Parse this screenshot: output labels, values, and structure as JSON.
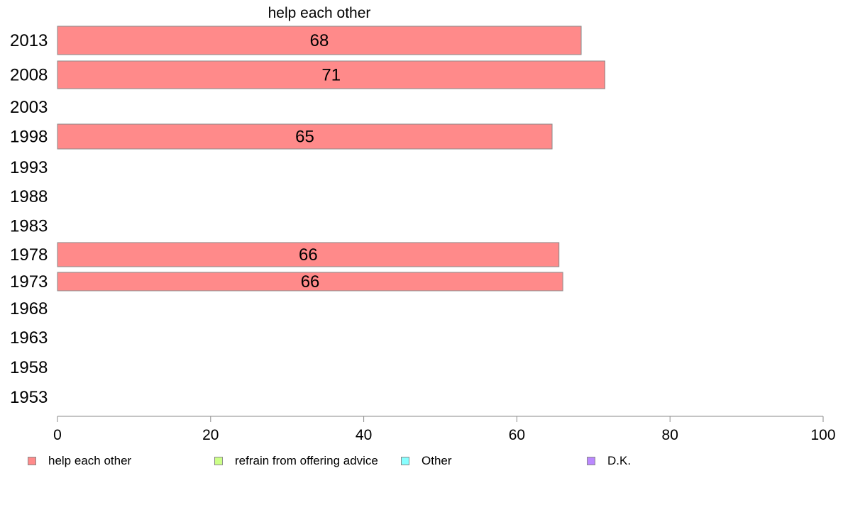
{
  "chart_data": {
    "type": "bar",
    "orientation": "horizontal",
    "title": "help each other",
    "categories": [
      "2013",
      "2008",
      "2003",
      "1998",
      "1993",
      "1988",
      "1983",
      "1978",
      "1973",
      "1968",
      "1963",
      "1958",
      "1953"
    ],
    "series": [
      {
        "name": "help each other",
        "color": "#ff8a8a",
        "values": [
          68.4,
          71.5,
          null,
          64.6,
          null,
          null,
          null,
          65.5,
          66.0,
          null,
          null,
          null,
          null
        ],
        "labels": [
          "68",
          "71",
          "",
          "65",
          "",
          "",
          "",
          "66",
          "66",
          "",
          "",
          "",
          ""
        ]
      }
    ],
    "xlim": [
      0,
      100
    ],
    "xticks": [
      "0",
      "20",
      "40",
      "60",
      "80",
      "100"
    ],
    "grid": false,
    "legend_position": "bottom",
    "legend": [
      {
        "label": "help each other",
        "color": "#ff8a8a"
      },
      {
        "label": "refrain from offering advice",
        "color": "#ccff88"
      },
      {
        "label": "Other",
        "color": "#88ffff"
      },
      {
        "label": "D.K.",
        "color": "#bb88ff"
      }
    ]
  }
}
